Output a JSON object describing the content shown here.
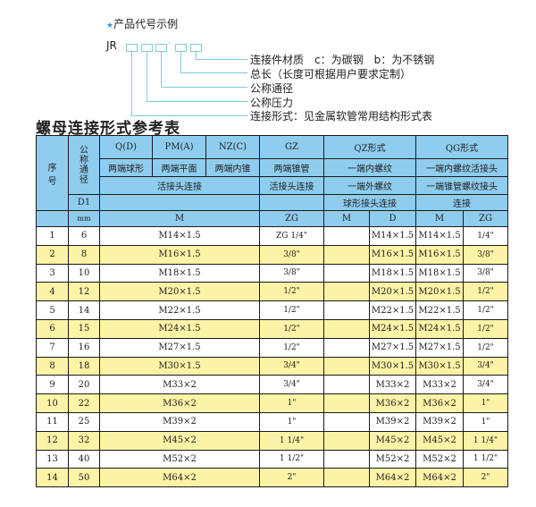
{
  "example": {
    "star": "★",
    "title": "产品代号示例",
    "code": "JR",
    "dash": "-",
    "legend": [
      "连接件材质　c：为碳钢　b：为不锈钢",
      "总长（长度可根据用户要求定制）",
      "公称通径",
      "公称压力",
      "连接形式：见金属软管常用结构形式表"
    ]
  },
  "table_title": "螺母连接形式参考表",
  "header": {
    "seq": "序号",
    "dn": "公称通径",
    "d1": "D1",
    "mm": "mm",
    "q": "Q(D)",
    "pm": "PM(A)",
    "nz": "NZ(C)",
    "gz": "GZ",
    "qz": "QZ形式",
    "qg": "QG形式",
    "q2": "两端球形",
    "pm2": "两端平面",
    "nz2": "两端内锥",
    "gz2": "两端锥管",
    "qz2": "一端内螺纹",
    "qg2": "一端内螺纹活接头",
    "hj": "活接头连接",
    "gz3": "活接头连接",
    "qz3": "一端外螺纹",
    "qg3": "一端锥管螺纹接头",
    "qz4": "球形接头连接",
    "qg4": "连接",
    "m": "M",
    "zg": "ZG",
    "qzm": "M",
    "qzd": "D",
    "qgm": "M",
    "qgzg": "ZG"
  },
  "rows": [
    {
      "no": "1",
      "dn": "6",
      "m": "M14×1.5",
      "zg": "ZG 1/4\"",
      "qzm": "",
      "qzd": "M14×1.5",
      "qgm": "M14×1.5",
      "qgzg": "1/4\""
    },
    {
      "no": "2",
      "dn": "8",
      "m": "M16×1.5",
      "zg": "3/8\"",
      "qzm": "",
      "qzd": "M16×1.5",
      "qgm": "M16×1.5",
      "qgzg": "3/8\""
    },
    {
      "no": "3",
      "dn": "10",
      "m": "M18×1.5",
      "zg": "3/8\"",
      "qzm": "",
      "qzd": "M18×1.5",
      "qgm": "M18×1.5",
      "qgzg": "3/8\""
    },
    {
      "no": "4",
      "dn": "12",
      "m": "M20×1.5",
      "zg": "1/2\"",
      "qzm": "",
      "qzd": "M20×1.5",
      "qgm": "M20×1.5",
      "qgzg": "1/2\""
    },
    {
      "no": "5",
      "dn": "14",
      "m": "M22×1.5",
      "zg": "1/2\"",
      "qzm": "",
      "qzd": "M22×1.5",
      "qgm": "M22×1.5",
      "qgzg": "1/2\""
    },
    {
      "no": "6",
      "dn": "15",
      "m": "M24×1.5",
      "zg": "1/2\"",
      "qzm": "",
      "qzd": "M24×1.5",
      "qgm": "M24×1.5",
      "qgzg": "1/2\""
    },
    {
      "no": "7",
      "dn": "16",
      "m": "M27×1.5",
      "zg": "1/2\"",
      "qzm": "",
      "qzd": "M27×1.5",
      "qgm": "M27×1.5",
      "qgzg": "1/2\""
    },
    {
      "no": "8",
      "dn": "18",
      "m": "M30×1.5",
      "zg": "3/4\"",
      "qzm": "",
      "qzd": "M30×1.5",
      "qgm": "M30×1.5",
      "qgzg": "3/4\""
    },
    {
      "no": "9",
      "dn": "20",
      "m": "M33×2",
      "zg": "3/4\"",
      "qzm": "",
      "qzd": "M33×2",
      "qgm": "M33×2",
      "qgzg": "3/4\""
    },
    {
      "no": "10",
      "dn": "22",
      "m": "M36×2",
      "zg": "1\"",
      "qzm": "",
      "qzd": "M36×2",
      "qgm": "M36×2",
      "qgzg": "1\""
    },
    {
      "no": "11",
      "dn": "25",
      "m": "M39×2",
      "zg": "1\"",
      "qzm": "",
      "qzd": "M39×2",
      "qgm": "M39×2",
      "qgzg": "1\""
    },
    {
      "no": "12",
      "dn": "32",
      "m": "M45×2",
      "zg": "1 1/4\"",
      "qzm": "",
      "qzd": "M45×2",
      "qgm": "M45×2",
      "qgzg": "1 1/4\""
    },
    {
      "no": "13",
      "dn": "40",
      "m": "M52×2",
      "zg": "1 1/2\"",
      "qzm": "",
      "qzd": "M52×2",
      "qgm": "M52×2",
      "qgzg": "1 1/2\""
    },
    {
      "no": "14",
      "dn": "50",
      "m": "M64×2",
      "zg": "2\"",
      "qzm": "",
      "qzd": "M64×2",
      "qgm": "M64×2",
      "qgzg": "2\""
    }
  ],
  "colors": {
    "header": "#8fcdef",
    "stripe": "#fdf3a6",
    "lines": "#7ccbe0",
    "star": "#2a9fd6"
  }
}
